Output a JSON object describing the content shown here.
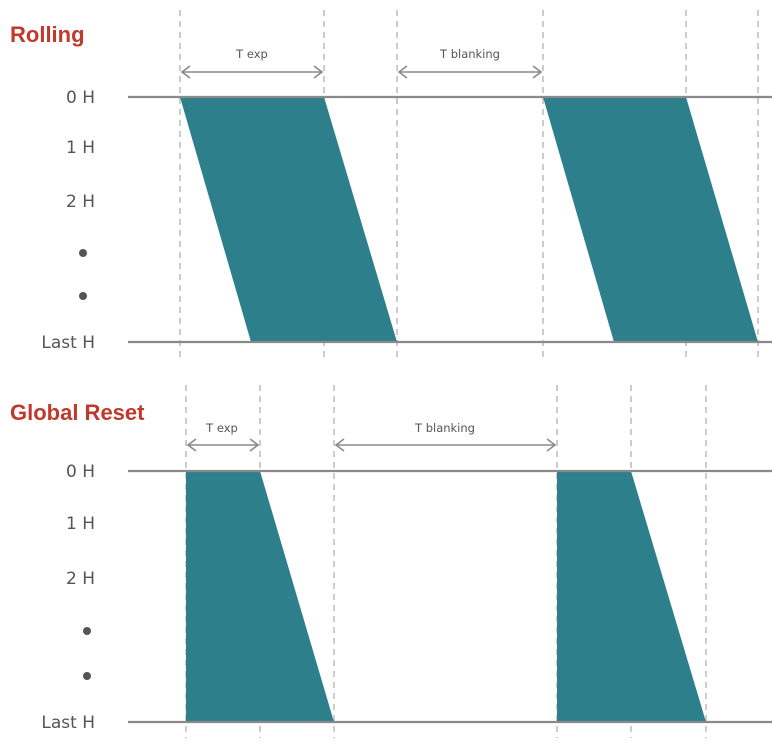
{
  "rolling": {
    "title": "Rolling",
    "rows": [
      "0 H",
      "1 H",
      "2 H",
      "Last H"
    ],
    "t_exp_label": "T exp",
    "t_blanking_label": "T blanking"
  },
  "global_reset": {
    "title": "Global Reset",
    "rows": [
      "0 H",
      "1 H",
      "2 H",
      "Last H"
    ],
    "t_exp_label": "T exp",
    "t_blanking_label": "T blanking"
  },
  "colors": {
    "band": "#2e7f8c",
    "title": "#c0392b",
    "line": "#8a8a8a"
  }
}
